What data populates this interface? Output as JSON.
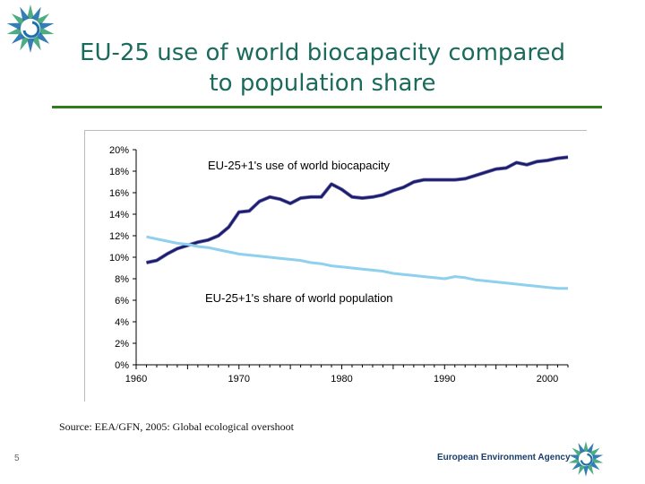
{
  "slide": {
    "title": "EU-25 use of world biocapacity compared to population share",
    "source": "Source: EEA/GFN, 2005: Global ecological overshoot",
    "page_number": "5",
    "agency_name": "European Environment Agency"
  },
  "colors": {
    "title": "#1a6b5c",
    "rule": "#2f7d1f",
    "biocapacity_line": "#1c1c6e",
    "population_line": "#8fd0ef",
    "logo_green": "#3aa374",
    "logo_blue": "#1f6fae"
  },
  "icons": {
    "top_logo": "eea-sun-logo-icon",
    "bottom_logo": "eea-sun-logo-icon"
  },
  "chart_data": {
    "type": "line",
    "title": "",
    "xlabel": "",
    "ylabel": "",
    "xlim": [
      1960,
      2002
    ],
    "ylim": [
      0,
      20
    ],
    "x_ticks": [
      "1960",
      "1970",
      "1980",
      "1990",
      "2000"
    ],
    "y_ticks": [
      "0%",
      "2%",
      "4%",
      "6%",
      "8%",
      "10%",
      "12%",
      "14%",
      "16%",
      "18%",
      "20%"
    ],
    "grid": false,
    "legend": "inline labels",
    "series": [
      {
        "name": "EU-25+1's use of world biocapacity",
        "x": [
          1961,
          1962,
          1963,
          1964,
          1965,
          1966,
          1967,
          1968,
          1969,
          1970,
          1971,
          1972,
          1973,
          1974,
          1975,
          1976,
          1977,
          1978,
          1979,
          1980,
          1981,
          1982,
          1983,
          1984,
          1985,
          1986,
          1987,
          1988,
          1989,
          1990,
          1991,
          1992,
          1993,
          1994,
          1995,
          1996,
          1997,
          1998,
          1999,
          2000,
          2001,
          2002
        ],
        "values": [
          9.5,
          9.7,
          10.3,
          10.8,
          11.1,
          11.4,
          11.6,
          12.0,
          12.8,
          14.2,
          14.3,
          15.2,
          15.6,
          15.4,
          15.0,
          15.5,
          15.6,
          15.6,
          16.8,
          16.3,
          15.6,
          15.5,
          15.6,
          15.8,
          16.2,
          16.5,
          17.0,
          17.2,
          17.2,
          17.2,
          17.2,
          17.3,
          17.6,
          17.9,
          18.2,
          18.3,
          18.8,
          18.6,
          18.9,
          19.0,
          19.2,
          19.3
        ]
      },
      {
        "name": "EU-25+1's share of world population",
        "x": [
          1961,
          1962,
          1963,
          1964,
          1965,
          1966,
          1967,
          1968,
          1969,
          1970,
          1971,
          1972,
          1973,
          1974,
          1975,
          1976,
          1977,
          1978,
          1979,
          1980,
          1981,
          1982,
          1983,
          1984,
          1985,
          1986,
          1987,
          1988,
          1989,
          1990,
          1991,
          1992,
          1993,
          1994,
          1995,
          1996,
          1997,
          1998,
          1999,
          2000,
          2001,
          2002
        ],
        "values": [
          11.9,
          11.7,
          11.5,
          11.3,
          11.2,
          11.0,
          10.9,
          10.7,
          10.5,
          10.3,
          10.2,
          10.1,
          10.0,
          9.9,
          9.8,
          9.7,
          9.5,
          9.4,
          9.2,
          9.1,
          9.0,
          8.9,
          8.8,
          8.7,
          8.5,
          8.4,
          8.3,
          8.2,
          8.1,
          8.0,
          8.2,
          8.1,
          7.9,
          7.8,
          7.7,
          7.6,
          7.5,
          7.4,
          7.3,
          7.2,
          7.1,
          7.1
        ]
      }
    ]
  }
}
